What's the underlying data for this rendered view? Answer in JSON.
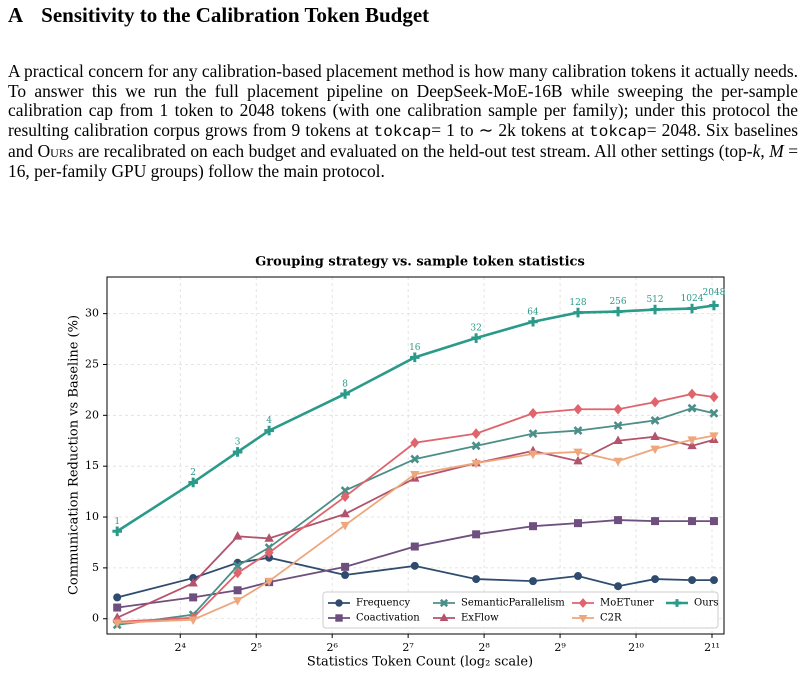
{
  "heading": {
    "label": "A",
    "title": "Sensitivity to the Calibration Token Budget"
  },
  "paragraph": [
    {
      "text": "A practical concern for any calibration-based placement method is how many calibration tokens it actually needs. To answer this we run the full placement pipeline on DeepSeek-MoE-16B while sweeping the per-sample calibration cap from ",
      "style": "plain"
    },
    {
      "text": "1",
      "style": "plain"
    },
    {
      "text": " token to ",
      "style": "plain"
    },
    {
      "text": "2048",
      "style": "plain"
    },
    {
      "text": " tokens (with one calibration sample per family); under this protocol the resulting calibration corpus grows from ",
      "style": "plain"
    },
    {
      "text": "9",
      "style": "plain"
    },
    {
      "text": " tokens at ",
      "style": "plain"
    },
    {
      "text": "tokcap",
      "style": "code"
    },
    {
      "text": "= 1",
      "style": "plain"
    },
    {
      "text": " to ",
      "style": "plain"
    },
    {
      "text": "∼ 2",
      "style": "plain"
    },
    {
      "text": "k tokens at ",
      "style": "plain"
    },
    {
      "text": "tokcap",
      "style": "code"
    },
    {
      "text": "= 2048",
      "style": "plain"
    },
    {
      "text": ". Six baselines and ",
      "style": "plain"
    },
    {
      "text": "Ours",
      "style": "smallcaps"
    },
    {
      "text": " are recalibrated on each budget and evaluated on the held-out test stream. All other settings (top-",
      "style": "plain"
    },
    {
      "text": "k",
      "style": "italic"
    },
    {
      "text": ", ",
      "style": "plain"
    },
    {
      "text": "M",
      "style": "italic"
    },
    {
      "text": " = 16, per-family GPU groups) follow the main protocol.",
      "style": "plain"
    }
  ],
  "chart_data": {
    "type": "line",
    "title": "Grouping strategy vs. sample token statistics",
    "x_label": "Statistics Token Count (log₂ scale)",
    "y_label": "Communication Reduction vs Baseline (%)",
    "x_scale": "log2",
    "x": [
      9,
      18,
      27,
      36,
      72,
      136,
      238,
      400,
      603,
      869,
      1218,
      1707,
      2085
    ],
    "xlim": [
      8.2,
      2285
    ],
    "xticks": [
      {
        "value": 16,
        "label": "2⁴"
      },
      {
        "value": 32,
        "label": "2⁵"
      },
      {
        "value": 64,
        "label": "2⁶"
      },
      {
        "value": 128,
        "label": "2⁷"
      },
      {
        "value": 256,
        "label": "2⁸"
      },
      {
        "value": 512,
        "label": "2⁹"
      },
      {
        "value": 1024,
        "label": "2¹⁰"
      },
      {
        "value": 2048,
        "label": "2¹¹"
      }
    ],
    "ylim": [
      -1.5,
      33.6
    ],
    "yticks": [
      0,
      5,
      10,
      15,
      20,
      25,
      30
    ],
    "grid": true,
    "legend": "lower right",
    "series": [
      {
        "name": "Frequency",
        "color": "#2f4b6e",
        "marker": "circle",
        "values": [
          2.1,
          4.0,
          5.5,
          6.0,
          4.3,
          5.2,
          3.9,
          3.7,
          4.2,
          3.2,
          3.9,
          3.8,
          3.8
        ]
      },
      {
        "name": "Coactivation",
        "color": "#6e4f7e",
        "marker": "square",
        "values": [
          1.1,
          2.1,
          2.8,
          3.6,
          5.1,
          7.1,
          8.3,
          9.1,
          9.4,
          9.7,
          9.6,
          9.6,
          9.6
        ]
      },
      {
        "name": "SemanticParallelism",
        "color": "#4c8f88",
        "marker": "x",
        "values": [
          -0.6,
          0.4,
          5.2,
          7.0,
          12.6,
          15.7,
          17.0,
          18.2,
          18.5,
          19.0,
          19.5,
          20.7,
          20.2
        ]
      },
      {
        "name": "ExFlow",
        "color": "#b3536c",
        "marker": "triangle-up",
        "values": [
          0.1,
          3.5,
          8.1,
          7.9,
          10.3,
          13.8,
          15.3,
          16.5,
          15.5,
          17.5,
          17.9,
          17.0,
          17.6
        ]
      },
      {
        "name": "MoETuner",
        "color": "#e0646c",
        "marker": "diamond",
        "values": [
          -0.3,
          0.1,
          4.5,
          6.5,
          12.0,
          17.3,
          18.2,
          20.2,
          20.6,
          20.6,
          21.3,
          22.1,
          21.8
        ]
      },
      {
        "name": "C2R",
        "color": "#eea77c",
        "marker": "triangle-down",
        "values": [
          -0.4,
          -0.1,
          1.8,
          3.7,
          9.2,
          14.2,
          15.3,
          16.2,
          16.4,
          15.5,
          16.7,
          17.6,
          18.0
        ]
      },
      {
        "name": "Ours",
        "color": "#2a9a8a",
        "marker": "plus",
        "values": [
          8.6,
          13.4,
          16.4,
          18.5,
          22.1,
          25.7,
          27.6,
          29.2,
          30.1,
          30.2,
          30.4,
          30.5,
          30.8
        ],
        "point_labels": [
          1,
          2,
          3,
          4,
          8,
          16,
          32,
          64,
          128,
          256,
          512,
          1024,
          2048
        ]
      }
    ]
  }
}
